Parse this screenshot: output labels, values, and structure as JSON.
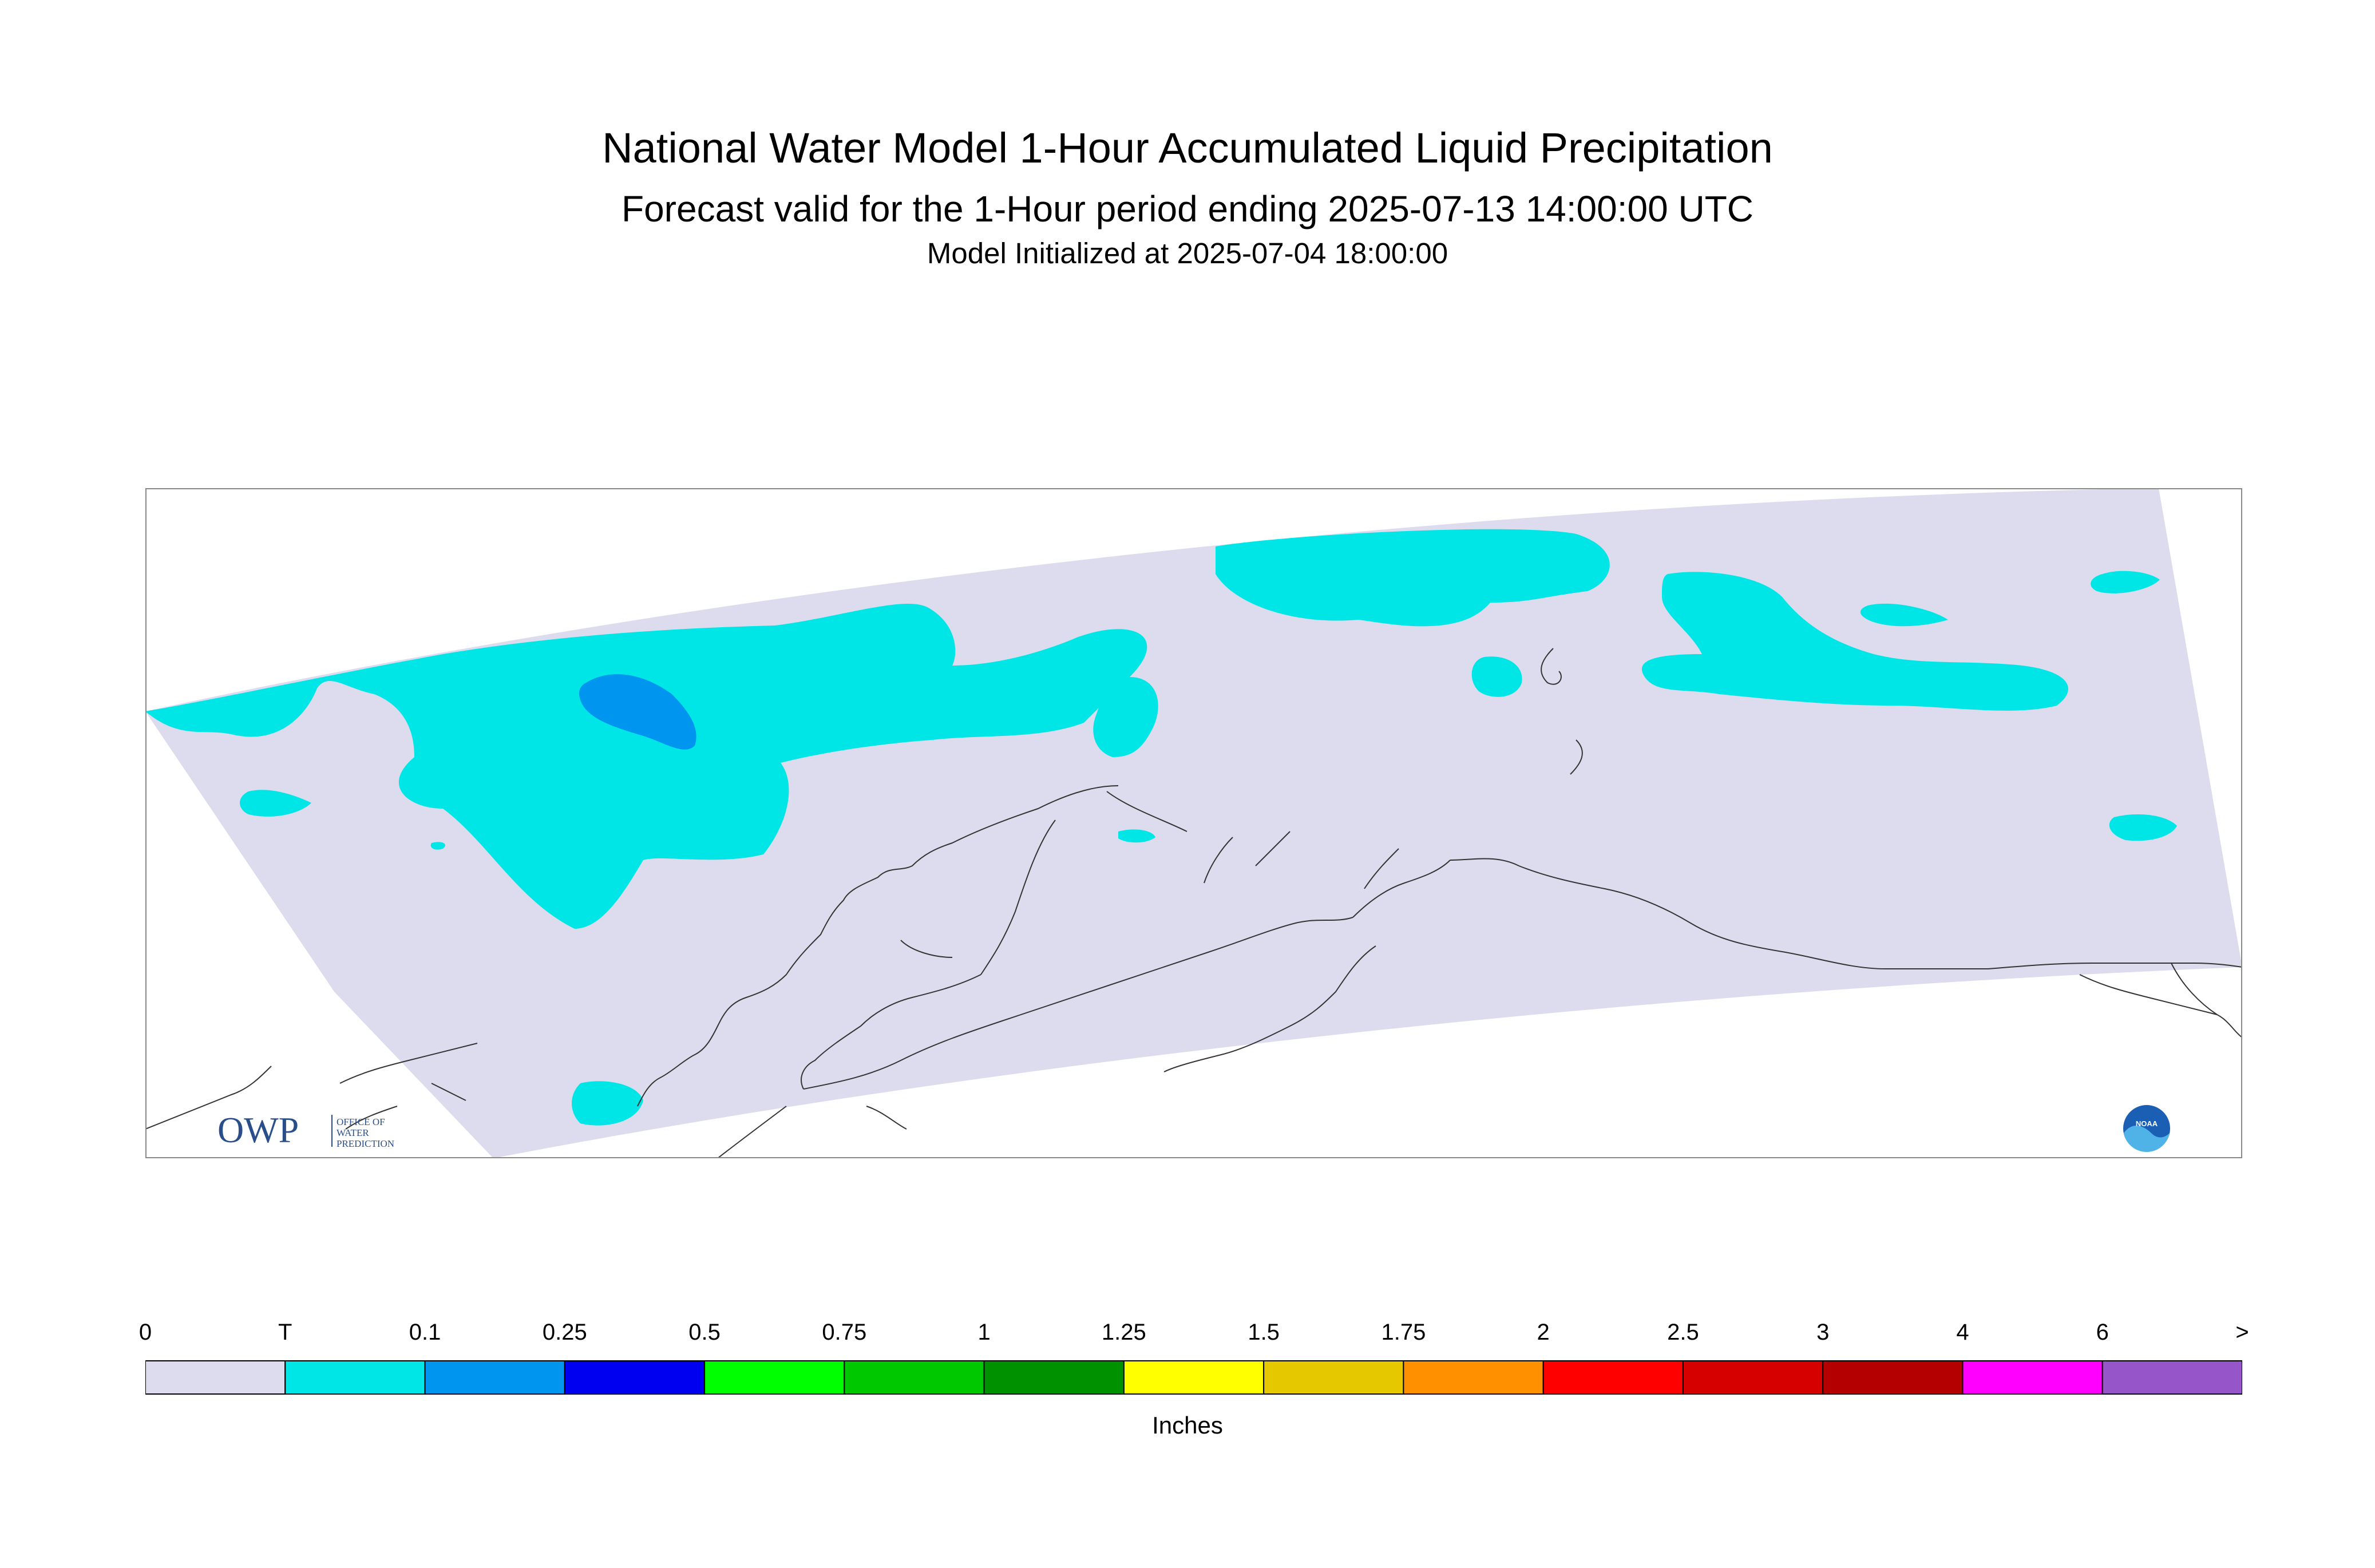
{
  "title": "National Water Model 1-Hour Accumulated Liquid Precipitation",
  "subtitle": "Forecast valid for the 1-Hour period ending 2025-07-13 14:00:00 UTC",
  "initialized": "Model Initialized at 2025-07-04 18:00:00",
  "colors": {
    "domain_zero": "#dcdcee",
    "trace": "#00e6e6",
    "light": "#0096f0",
    "coast": "#333333",
    "frame": "#888888"
  },
  "logos": {
    "owp_mark": "OWP",
    "owp_text": [
      "OFFICE OF",
      "WATER",
      "PREDICTION"
    ],
    "noaa_text": "NOAA"
  },
  "legend": {
    "labels": [
      "0",
      "T",
      "0.1",
      "0.25",
      "0.5",
      "0.75",
      "1",
      "1.25",
      "1.5",
      "1.75",
      "2",
      "2.5",
      "3",
      "4",
      "6",
      ">"
    ],
    "colors": [
      "#dcdcee",
      "#00e6e6",
      "#0096f0",
      "#0000f0",
      "#00ff00",
      "#00c800",
      "#009100",
      "#ffff00",
      "#e6c800",
      "#ff9100",
      "#ff0000",
      "#d70000",
      "#b40000",
      "#ff00ff",
      "#9655c8"
    ],
    "units": "Inches"
  }
}
